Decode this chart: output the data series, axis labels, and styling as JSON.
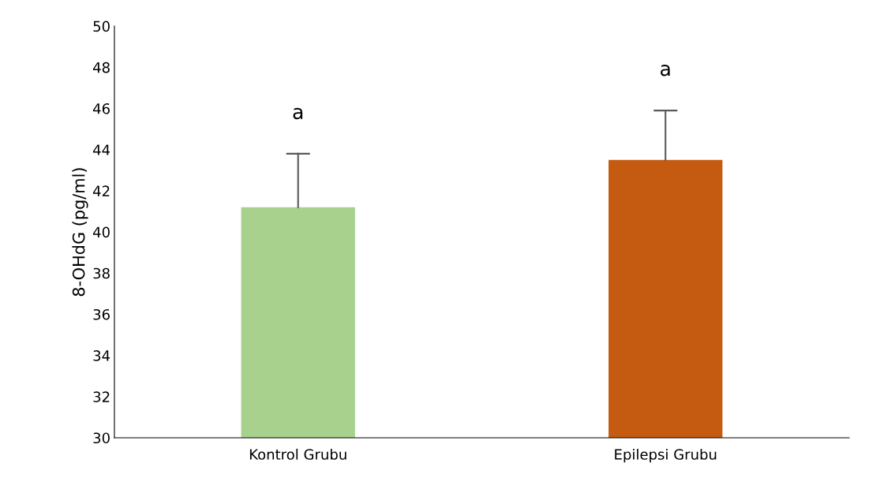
{
  "chart_data": {
    "type": "bar",
    "ylabel": "8-OHdG (pg/ml)",
    "categories": [
      "Kontrol Grubu",
      "Epilepsi Grubu"
    ],
    "values": [
      41.2,
      43.5
    ],
    "colors": [
      "#a9d18e",
      "#c55a11"
    ],
    "errors": [
      [
        41.2,
        43.8
      ],
      [
        43.5,
        45.9
      ]
    ],
    "ylim": [
      30,
      50
    ],
    "yticks": [
      30,
      32,
      34,
      36,
      38,
      40,
      42,
      44,
      46,
      48,
      50
    ],
    "annotations": [
      "a",
      "a"
    ]
  }
}
